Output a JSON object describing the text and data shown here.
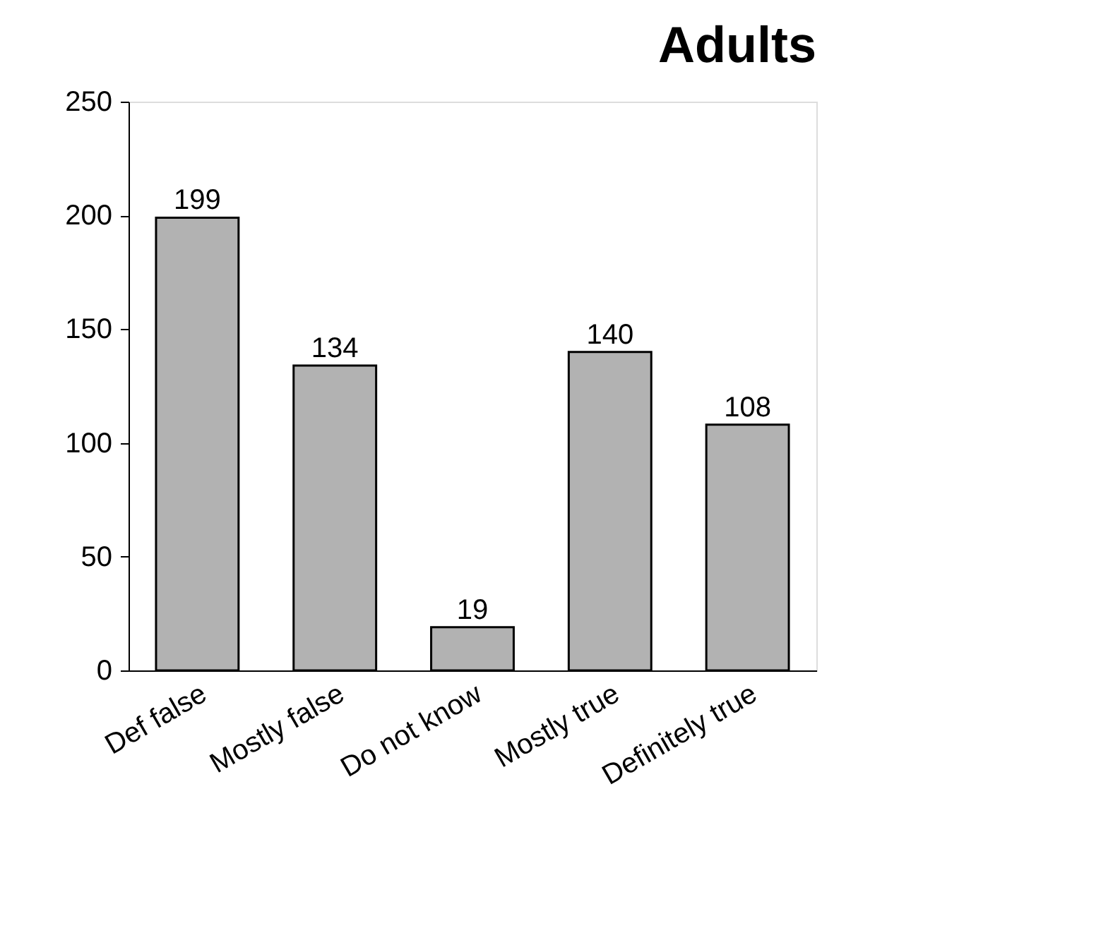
{
  "chart_data": {
    "type": "bar",
    "title": "Adults",
    "categories": [
      "Def false",
      "Mostly false",
      "Do not know",
      "Mostly true",
      "Definitely true"
    ],
    "values": [
      199,
      134,
      19,
      140,
      108
    ],
    "color": "#b2b2b2",
    "ylim": [
      0,
      250
    ],
    "yticks": [
      0,
      50,
      100,
      150,
      200,
      250
    ],
    "grid": false,
    "data_labels": true
  }
}
